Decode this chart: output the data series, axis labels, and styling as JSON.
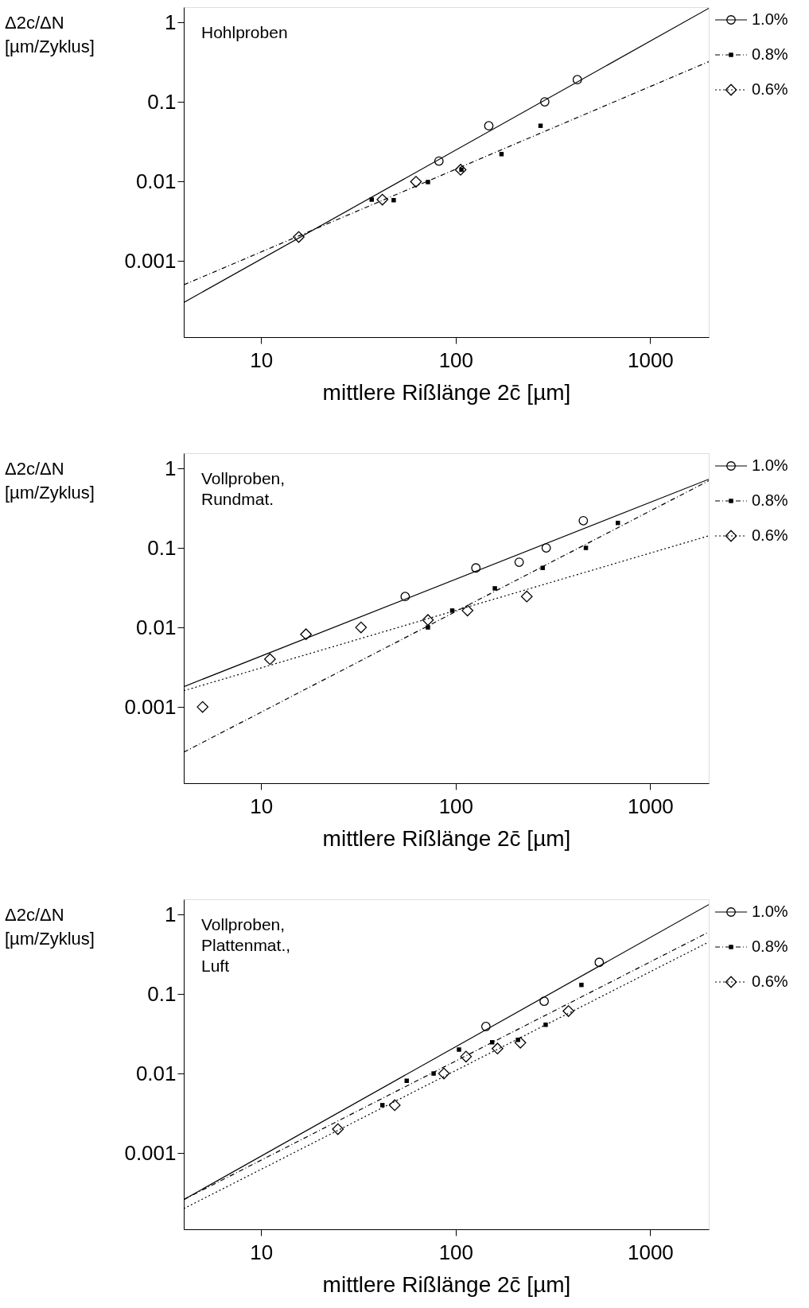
{
  "chart_data": [
    {
      "type": "scatter",
      "ylabel": "Δ2c/ΔN\n[µm/Zyklus]",
      "xlabel": "mittlere Rißlänge 2c̄ [µm]",
      "log": "xy",
      "xlim": [
        4,
        2000
      ],
      "ylim": [
        0.00011,
        1.55
      ],
      "xticks": [
        10,
        100,
        1000
      ],
      "yticks": [
        0.001,
        0.01,
        0.1,
        1
      ],
      "grid": false,
      "legend": "top right",
      "annotations": [
        "Hohlproben"
      ],
      "series": [
        {
          "name": "1.0%",
          "color": "#000000",
          "marker": "circle",
          "line_style": "solid",
          "x": [
            82,
            148,
            287,
            422
          ],
          "values": [
            0.018,
            0.05,
            0.1,
            0.19
          ]
        },
        {
          "name": "0.8%",
          "color": "#000000",
          "marker": "square",
          "line_style": "dashed",
          "x": [
            37,
            48,
            72,
            107,
            172,
            273
          ],
          "values": [
            0.0059,
            0.0058,
            0.0098,
            0.014,
            0.022,
            0.05
          ]
        },
        {
          "name": "0.6%",
          "color": "#000000",
          "marker": "diamond",
          "line_style": "dotted",
          "x": [
            15.6,
            42,
            62.5,
            106
          ],
          "values": [
            0.002,
            0.0059,
            0.0099,
            0.014
          ]
        },
        {
          "type": "line",
          "color": "#000000",
          "line_style": "solid",
          "x": [
            4,
            2000
          ],
          "values": [
            0.0003,
            1.5
          ]
        },
        {
          "type": "line",
          "color": "#000000",
          "line_style": "dashed",
          "x": [
            4,
            2000
          ],
          "values": [
            0.0005,
            0.32
          ]
        }
      ]
    },
    {
      "type": "scatter",
      "ylabel": "Δ2c/ΔN\n[µm/Zyklus]",
      "xlabel": "mittlere Rißlänge 2c̄ [µm]",
      "log": "xy",
      "xlim": [
        4,
        2000
      ],
      "ylim": [
        0.00011,
        1.55
      ],
      "xticks": [
        10,
        100,
        1000
      ],
      "yticks": [
        0.001,
        0.01,
        0.1,
        1
      ],
      "grid": false,
      "legend": "top right",
      "annotations": [
        "Vollproben,\nRundmat."
      ],
      "series": [
        {
          "name": "1.0%",
          "color": "#000000",
          "marker": "circle",
          "line_style": "solid",
          "x": [
            55,
            127,
            212,
            292,
            453
          ],
          "values": [
            0.0245,
            0.056,
            0.066,
            0.1,
            0.22
          ]
        },
        {
          "name": "0.8%",
          "color": "#000000",
          "marker": "square",
          "line_style": "dashed",
          "x": [
            72,
            96,
            159,
            280,
            467,
            682
          ],
          "values": [
            0.01,
            0.0163,
            0.031,
            0.056,
            0.1,
            0.206
          ]
        },
        {
          "name": "0.6%",
          "color": "#000000",
          "marker": "diamond",
          "line_style": "dotted",
          "x": [
            5.0,
            11.1,
            17,
            32.6,
            72,
            115,
            232
          ],
          "values": [
            0.001,
            0.004,
            0.0082,
            0.01,
            0.0124,
            0.0163,
            0.0245
          ]
        },
        {
          "type": "line",
          "color": "#000000",
          "line_style": "solid",
          "x": [
            4,
            2000
          ],
          "values": [
            0.0018,
            0.73
          ]
        },
        {
          "type": "line",
          "color": "#000000",
          "line_style": "dashed",
          "x": [
            4,
            2000
          ],
          "values": [
            0.00027,
            0.7
          ]
        },
        {
          "type": "line",
          "color": "#000000",
          "line_style": "dotted",
          "x": [
            4,
            2000
          ],
          "values": [
            0.0016,
            0.142
          ]
        }
      ]
    },
    {
      "type": "scatter",
      "ylabel": "Δ2c/ΔN\n[µm/Zyklus]",
      "xlabel": "mittlere Rißlänge 2c̄ [µm]",
      "log": "xy",
      "xlim": [
        4,
        2000
      ],
      "ylim": [
        0.00011,
        1.55
      ],
      "xticks": [
        10,
        100,
        1000
      ],
      "yticks": [
        0.001,
        0.01,
        0.1,
        1
      ],
      "grid": false,
      "legend": "top right",
      "annotations": [
        "Vollproben,\nPlattenmat.,\nLuft"
      ],
      "series": [
        {
          "name": "1.0%",
          "color": "#000000",
          "marker": "circle",
          "line_style": "solid",
          "x": [
            143,
            285,
            547
          ],
          "values": [
            0.039,
            0.081,
            0.25
          ]
        },
        {
          "name": "0.8%",
          "color": "#000000",
          "marker": "square",
          "line_style": "dashed",
          "x": [
            42,
            56,
            77,
            104,
            154,
            209,
            290,
            443
          ],
          "values": [
            0.004,
            0.0081,
            0.01,
            0.02,
            0.0247,
            0.0265,
            0.041,
            0.13
          ]
        },
        {
          "name": "0.6%",
          "color": "#000000",
          "marker": "diamond",
          "line_style": "dotted",
          "x": [
            24.8,
            48.6,
            87,
            113,
            164,
            215,
            380
          ],
          "values": [
            0.002,
            0.004,
            0.01,
            0.0163,
            0.0206,
            0.0244,
            0.061
          ]
        },
        {
          "type": "line",
          "color": "#000000",
          "line_style": "solid",
          "x": [
            4,
            2000
          ],
          "values": [
            0.00026,
            1.33
          ]
        },
        {
          "type": "line",
          "color": "#000000",
          "line_style": "dashed",
          "x": [
            4,
            2000
          ],
          "values": [
            0.00026,
            0.6
          ]
        },
        {
          "type": "line",
          "color": "#000000",
          "line_style": "dotted",
          "x": [
            4,
            2000
          ],
          "values": [
            0.0002,
            0.45
          ]
        }
      ]
    }
  ]
}
